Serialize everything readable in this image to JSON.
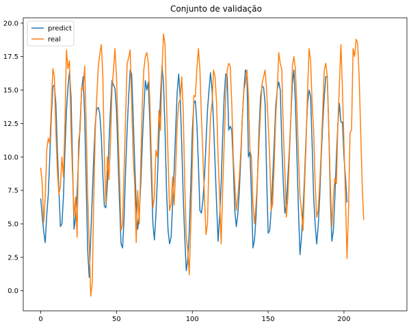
{
  "chart_data": {
    "type": "line",
    "title": "Conjunto de validação",
    "xlabel": "",
    "ylabel": "",
    "xlim": [
      -11.5,
      241.5
    ],
    "ylim": [
      -1.5,
      20.4
    ],
    "xticks": [
      0,
      50,
      100,
      150,
      200
    ],
    "xtick_labels": [
      "0",
      "50",
      "100",
      "150",
      "200"
    ],
    "yticks": [
      0.0,
      2.5,
      5.0,
      7.5,
      10.0,
      12.5,
      15.0,
      17.5,
      20.0
    ],
    "ytick_labels": [
      "0.0",
      "2.5",
      "5.0",
      "7.5",
      "10.0",
      "12.5",
      "15.0",
      "17.5",
      "20.0"
    ],
    "grid": false,
    "legend_position": "top-left",
    "series": [
      {
        "name": "predict",
        "color": "#1f77b4",
        "values": [
          6.9,
          5.6,
          4.4,
          3.6,
          5.7,
          7.2,
          10.0,
          13.0,
          15.2,
          15.4,
          14.0,
          10.5,
          7.5,
          4.8,
          5.0,
          7.0,
          10.5,
          13.5,
          15.2,
          16.4,
          14.5,
          9.5,
          4.6,
          5.5,
          7.3,
          10.0,
          12.5,
          15.0,
          16.0,
          13.0,
          8.0,
          3.0,
          1.0,
          4.0,
          7.0,
          10.0,
          12.5,
          13.6,
          13.7,
          13.2,
          11.5,
          8.6,
          6.3,
          6.2,
          8.0,
          11.0,
          13.5,
          15.7,
          15.4,
          15.1,
          13.5,
          10.0,
          6.5,
          3.5,
          3.2,
          5.5,
          9.0,
          12.0,
          14.5,
          16.5,
          16.2,
          13.0,
          9.5,
          6.5,
          4.6,
          5.7,
          8.0,
          11.0,
          13.5,
          15.7,
          15.0,
          15.6,
          12.5,
          8.5,
          5.0,
          3.8,
          5.7,
          8.5,
          11.5,
          14.5,
          16.8,
          15.5,
          12.0,
          7.5,
          4.5,
          3.5,
          4.0,
          6.5,
          9.0,
          12.0,
          14.8,
          16.2,
          14.5,
          11.0,
          7.0,
          4.0,
          1.5,
          2.3,
          4.5,
          8.0,
          12.0,
          14.0,
          14.2,
          12.5,
          9.5,
          6.0,
          5.8,
          6.8,
          8.5,
          11.0,
          13.5,
          15.0,
          16.3,
          15.0,
          12.5,
          9.5,
          6.5,
          3.7,
          5.5,
          8.0,
          11.5,
          14.5,
          16.2,
          16.0,
          12.0,
          12.3,
          12.0,
          9.5,
          6.0,
          4.8,
          5.7,
          7.5,
          10.0,
          13.0,
          15.0,
          16.5,
          16.2,
          10.0,
          10.4,
          7.0,
          3.2,
          3.8,
          5.5,
          8.5,
          12.0,
          14.5,
          15.3,
          15.2,
          14.0,
          8.6,
          4.3,
          4.5,
          6.0,
          8.5,
          11.0,
          13.8,
          15.0,
          15.6,
          15.0,
          11.0,
          8.0,
          5.8,
          6.5,
          8.5,
          10.5,
          13.0,
          15.5,
          16.5,
          14.0,
          10.0,
          6.0,
          2.7,
          4.0,
          6.0,
          8.5,
          11.5,
          14.0,
          15.0,
          14.5,
          11.0,
          7.0,
          5.0,
          3.5,
          4.8,
          7.0,
          10.0,
          12.5,
          14.5,
          16.0,
          16.0,
          12.0,
          7.0,
          3.7,
          4.5,
          7.0,
          10.0,
          12.5,
          14.0,
          12.6,
          12.6,
          10.0,
          8.5,
          6.6
        ]
      },
      {
        "name": "real",
        "color": "#ff7f0e",
        "values": [
          9.2,
          8.0,
          5.1,
          7.0,
          10.5,
          11.4,
          11.0,
          13.6,
          16.6,
          16.0,
          12.0,
          9.0,
          7.2,
          7.8,
          10.0,
          8.5,
          12.5,
          18.0,
          16.6,
          17.2,
          12.0,
          8.7,
          5.5,
          7.0,
          4.0,
          11.2,
          12.0,
          15.2,
          15.0,
          16.8,
          12.5,
          7.0,
          3.5,
          -0.4,
          0.6,
          7.0,
          12.0,
          14.5,
          16.8,
          17.7,
          18.4,
          16.0,
          10.0,
          6.5,
          10.0,
          8.3,
          11.0,
          15.0,
          16.5,
          18.1,
          16.0,
          12.0,
          8.5,
          4.5,
          5.0,
          9.0,
          13.0,
          17.0,
          17.4,
          18.0,
          14.0,
          10.0,
          8.0,
          3.6,
          7.5,
          5.0,
          9.5,
          14.0,
          16.5,
          17.5,
          17.8,
          17.0,
          14.0,
          10.0,
          6.2,
          7.0,
          10.5,
          10.0,
          13.5,
          12.0,
          16.5,
          19.2,
          18.4,
          14.0,
          10.0,
          6.0,
          6.5,
          8.5,
          6.4,
          9.0,
          12.5,
          14.0,
          14.3,
          16.0,
          13.5,
          8.0,
          4.0,
          3.0,
          1.2,
          5.0,
          9.5,
          14.6,
          14.5,
          16.6,
          18.1,
          16.5,
          13.0,
          10.0,
          7.0,
          4.2,
          5.0,
          10.0,
          13.0,
          14.0,
          16.5,
          16.0,
          14.0,
          10.0,
          7.0,
          3.5,
          7.5,
          11.0,
          14.5,
          16.5,
          17.0,
          16.8,
          14.0,
          10.0,
          8.0,
          6.0,
          7.0,
          8.5,
          10.5,
          13.0,
          15.0,
          15.5,
          16.5,
          14.5,
          10.5,
          10.0,
          6.5,
          5.0,
          6.5,
          8.5,
          11.0,
          13.5,
          15.5,
          16.0,
          16.5,
          15.0,
          12.5,
          10.0,
          6.0,
          6.5,
          9.5,
          13.0,
          15.0,
          17.8,
          17.0,
          16.5,
          12.0,
          9.0,
          5.5,
          7.0,
          10.0,
          13.0,
          16.8,
          17.5,
          16.5,
          13.5,
          10.0,
          7.0,
          6.0,
          4.5,
          7.8,
          11.0,
          15.0,
          18.1,
          17.2,
          14.0,
          12.0,
          8.0,
          5.5,
          6.0,
          8.0,
          10.5,
          13.5,
          16.5,
          17.0,
          16.0,
          12.0,
          8.0,
          4.8,
          7.0,
          8.4,
          8.0,
          12.5,
          15.5,
          18.4,
          15.0,
          11.0,
          7.0,
          2.4,
          6.0,
          11.8,
          12.0,
          18.1,
          17.5,
          18.8,
          18.5,
          16.0,
          12.0,
          8.0,
          5.3
        ]
      }
    ]
  }
}
